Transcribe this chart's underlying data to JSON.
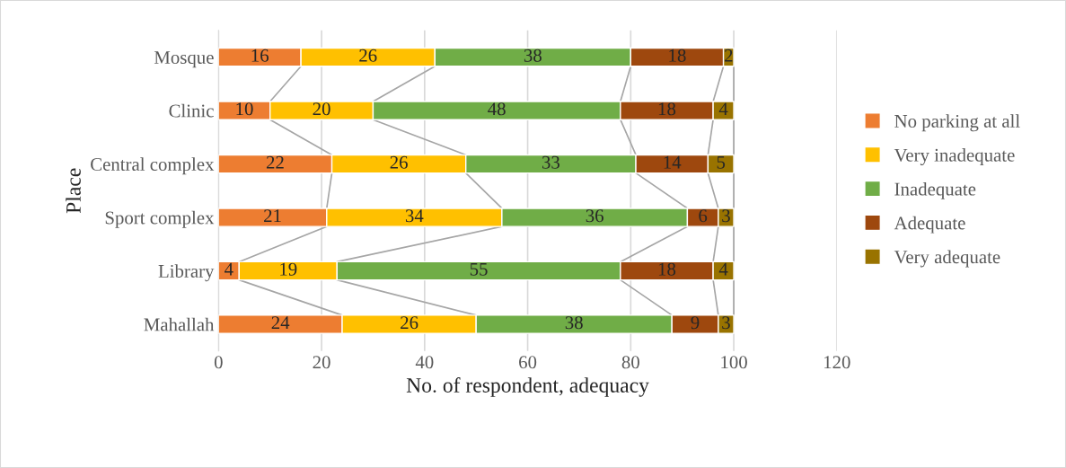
{
  "chart_data": {
    "type": "bar",
    "orientation": "horizontal",
    "stacked": true,
    "xlabel": "No. of respondent, adequacy",
    "ylabel": "Place",
    "categories": [
      "Mosque",
      "Clinic",
      "Central complex",
      "Sport complex",
      "Library",
      "Mahallah"
    ],
    "series": [
      {
        "name": "No parking at all",
        "color": "#ed7d31",
        "values": [
          16,
          10,
          22,
          21,
          4,
          24
        ]
      },
      {
        "name": "Very inadequate",
        "color": "#ffc000",
        "values": [
          26,
          20,
          26,
          34,
          19,
          26
        ]
      },
      {
        "name": "Inadequate",
        "color": "#70ad47",
        "values": [
          38,
          48,
          33,
          36,
          55,
          38
        ]
      },
      {
        "name": "Adequate",
        "color": "#9e480e",
        "values": [
          18,
          18,
          14,
          6,
          18,
          9
        ]
      },
      {
        "name": "Very adequate",
        "color": "#997300",
        "values": [
          2,
          4,
          5,
          3,
          4,
          3
        ]
      }
    ],
    "xlim": [
      0,
      120
    ],
    "xticks": [
      0,
      20,
      40,
      60,
      80,
      100,
      120
    ],
    "grid": "x",
    "legend": "right",
    "data_labels": true
  }
}
